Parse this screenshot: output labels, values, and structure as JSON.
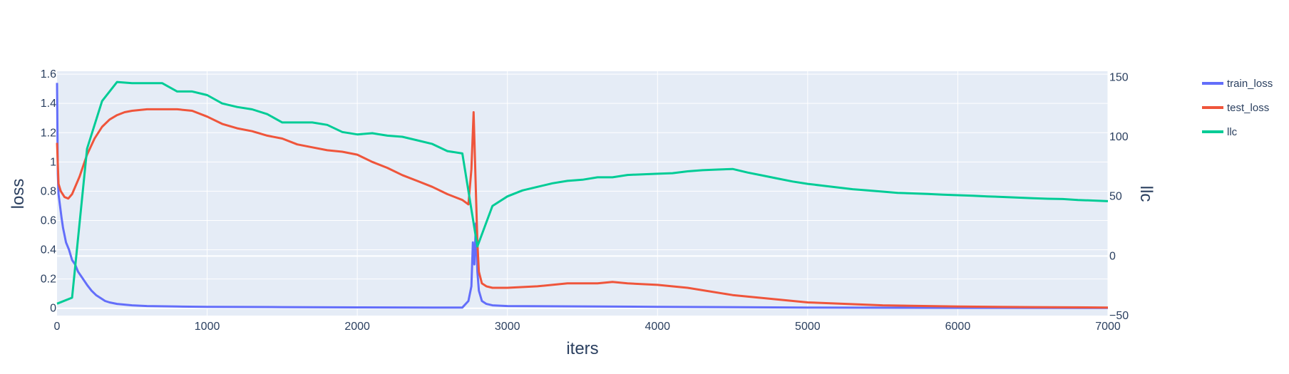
{
  "chart_data": {
    "type": "line",
    "title": "",
    "xlabel": "iters",
    "ylabel": "loss",
    "y2label": "llc",
    "xlim": [
      0,
      7000
    ],
    "ylim": [
      -0.05,
      1.62
    ],
    "y2lim": [
      -50,
      155
    ],
    "xticks": [
      0,
      1000,
      2000,
      3000,
      4000,
      5000,
      6000,
      7000
    ],
    "yticks": [
      0,
      0.2,
      0.4,
      0.6,
      0.8,
      1,
      1.2,
      1.4,
      1.6
    ],
    "y2ticks": [
      -50,
      0,
      50,
      100,
      150
    ],
    "xtick_labels": [
      "0",
      "1000",
      "2000",
      "3000",
      "4000",
      "5000",
      "6000",
      "7000"
    ],
    "ytick_labels": [
      "0",
      "0.2",
      "0.4",
      "0.6",
      "0.8",
      "1",
      "1.2",
      "1.4",
      "1.6"
    ],
    "y2tick_labels": [
      "−50",
      "0",
      "50",
      "100",
      "150"
    ],
    "grid": true,
    "legend_position": "top-right outside",
    "background": "#e5ecf6",
    "series": [
      {
        "name": "train_loss",
        "axis": "y",
        "color": "#636efa",
        "x": [
          0,
          5,
          10,
          20,
          30,
          40,
          50,
          60,
          80,
          100,
          120,
          140,
          160,
          180,
          200,
          230,
          260,
          290,
          320,
          350,
          400,
          500,
          600,
          800,
          1000,
          1500,
          2000,
          2500,
          2700,
          2740,
          2760,
          2770,
          2780,
          2790,
          2800,
          2810,
          2830,
          2860,
          2900,
          3000,
          4000,
          5000,
          6000,
          7000
        ],
        "y": [
          1.54,
          0.92,
          0.78,
          0.7,
          0.62,
          0.55,
          0.5,
          0.45,
          0.4,
          0.33,
          0.3,
          0.25,
          0.22,
          0.19,
          0.16,
          0.12,
          0.09,
          0.07,
          0.05,
          0.04,
          0.03,
          0.02,
          0.015,
          0.012,
          0.01,
          0.008,
          0.006,
          0.005,
          0.005,
          0.05,
          0.15,
          0.45,
          0.3,
          0.58,
          0.25,
          0.12,
          0.05,
          0.03,
          0.02,
          0.015,
          0.01,
          0.005,
          0.003,
          0.002
        ]
      },
      {
        "name": "test_loss",
        "axis": "y",
        "color": "#ef553b",
        "x": [
          0,
          10,
          25,
          50,
          75,
          100,
          150,
          200,
          250,
          300,
          350,
          400,
          450,
          500,
          600,
          700,
          800,
          900,
          1000,
          1100,
          1200,
          1300,
          1400,
          1500,
          1600,
          1700,
          1800,
          1900,
          2000,
          2100,
          2200,
          2300,
          2400,
          2500,
          2600,
          2700,
          2740,
          2760,
          2775,
          2790,
          2800,
          2810,
          2830,
          2860,
          2900,
          3000,
          3200,
          3400,
          3600,
          3700,
          3800,
          4000,
          4200,
          4500,
          5000,
          5500,
          6000,
          6500,
          7000
        ],
        "y": [
          1.13,
          0.85,
          0.8,
          0.76,
          0.75,
          0.78,
          0.9,
          1.05,
          1.16,
          1.24,
          1.29,
          1.32,
          1.34,
          1.35,
          1.36,
          1.36,
          1.36,
          1.35,
          1.31,
          1.26,
          1.23,
          1.21,
          1.18,
          1.16,
          1.12,
          1.1,
          1.08,
          1.07,
          1.05,
          1.0,
          0.96,
          0.91,
          0.87,
          0.83,
          0.78,
          0.74,
          0.71,
          0.95,
          1.34,
          0.8,
          0.45,
          0.25,
          0.17,
          0.15,
          0.14,
          0.14,
          0.15,
          0.17,
          0.17,
          0.18,
          0.17,
          0.16,
          0.14,
          0.09,
          0.04,
          0.02,
          0.012,
          0.008,
          0.005
        ]
      },
      {
        "name": "llc",
        "axis": "y2",
        "color": "#00cc96",
        "x": [
          0,
          100,
          200,
          300,
          400,
          500,
          600,
          700,
          800,
          900,
          1000,
          1100,
          1200,
          1300,
          1400,
          1500,
          1600,
          1700,
          1800,
          1900,
          2000,
          2100,
          2200,
          2300,
          2400,
          2500,
          2600,
          2700,
          2800,
          2900,
          3000,
          3100,
          3200,
          3300,
          3400,
          3500,
          3600,
          3700,
          3800,
          3900,
          4000,
          4100,
          4200,
          4300,
          4400,
          4500,
          4600,
          4700,
          4800,
          4900,
          5000,
          5100,
          5200,
          5300,
          5400,
          5500,
          5600,
          5700,
          5800,
          5900,
          6000,
          6100,
          6200,
          6300,
          6400,
          6500,
          6600,
          6700,
          6800,
          6900,
          7000
        ],
        "y": [
          -40,
          -35,
          90,
          130,
          146,
          145,
          145,
          145,
          138,
          138,
          135,
          128,
          125,
          123,
          119,
          112,
          112,
          112,
          110,
          104,
          102,
          103,
          101,
          100,
          97,
          94,
          88,
          86,
          8,
          42,
          50,
          55,
          58,
          61,
          63,
          64,
          66,
          66,
          68,
          68.5,
          69,
          69.5,
          71,
          72,
          72.5,
          73,
          70,
          67.5,
          65,
          62.5,
          60.5,
          59,
          57.5,
          56,
          55,
          54,
          53,
          52.5,
          52,
          51.5,
          51,
          50.5,
          50,
          49.5,
          49,
          48.5,
          48,
          47.8,
          47,
          46.5,
          46
        ]
      }
    ]
  }
}
